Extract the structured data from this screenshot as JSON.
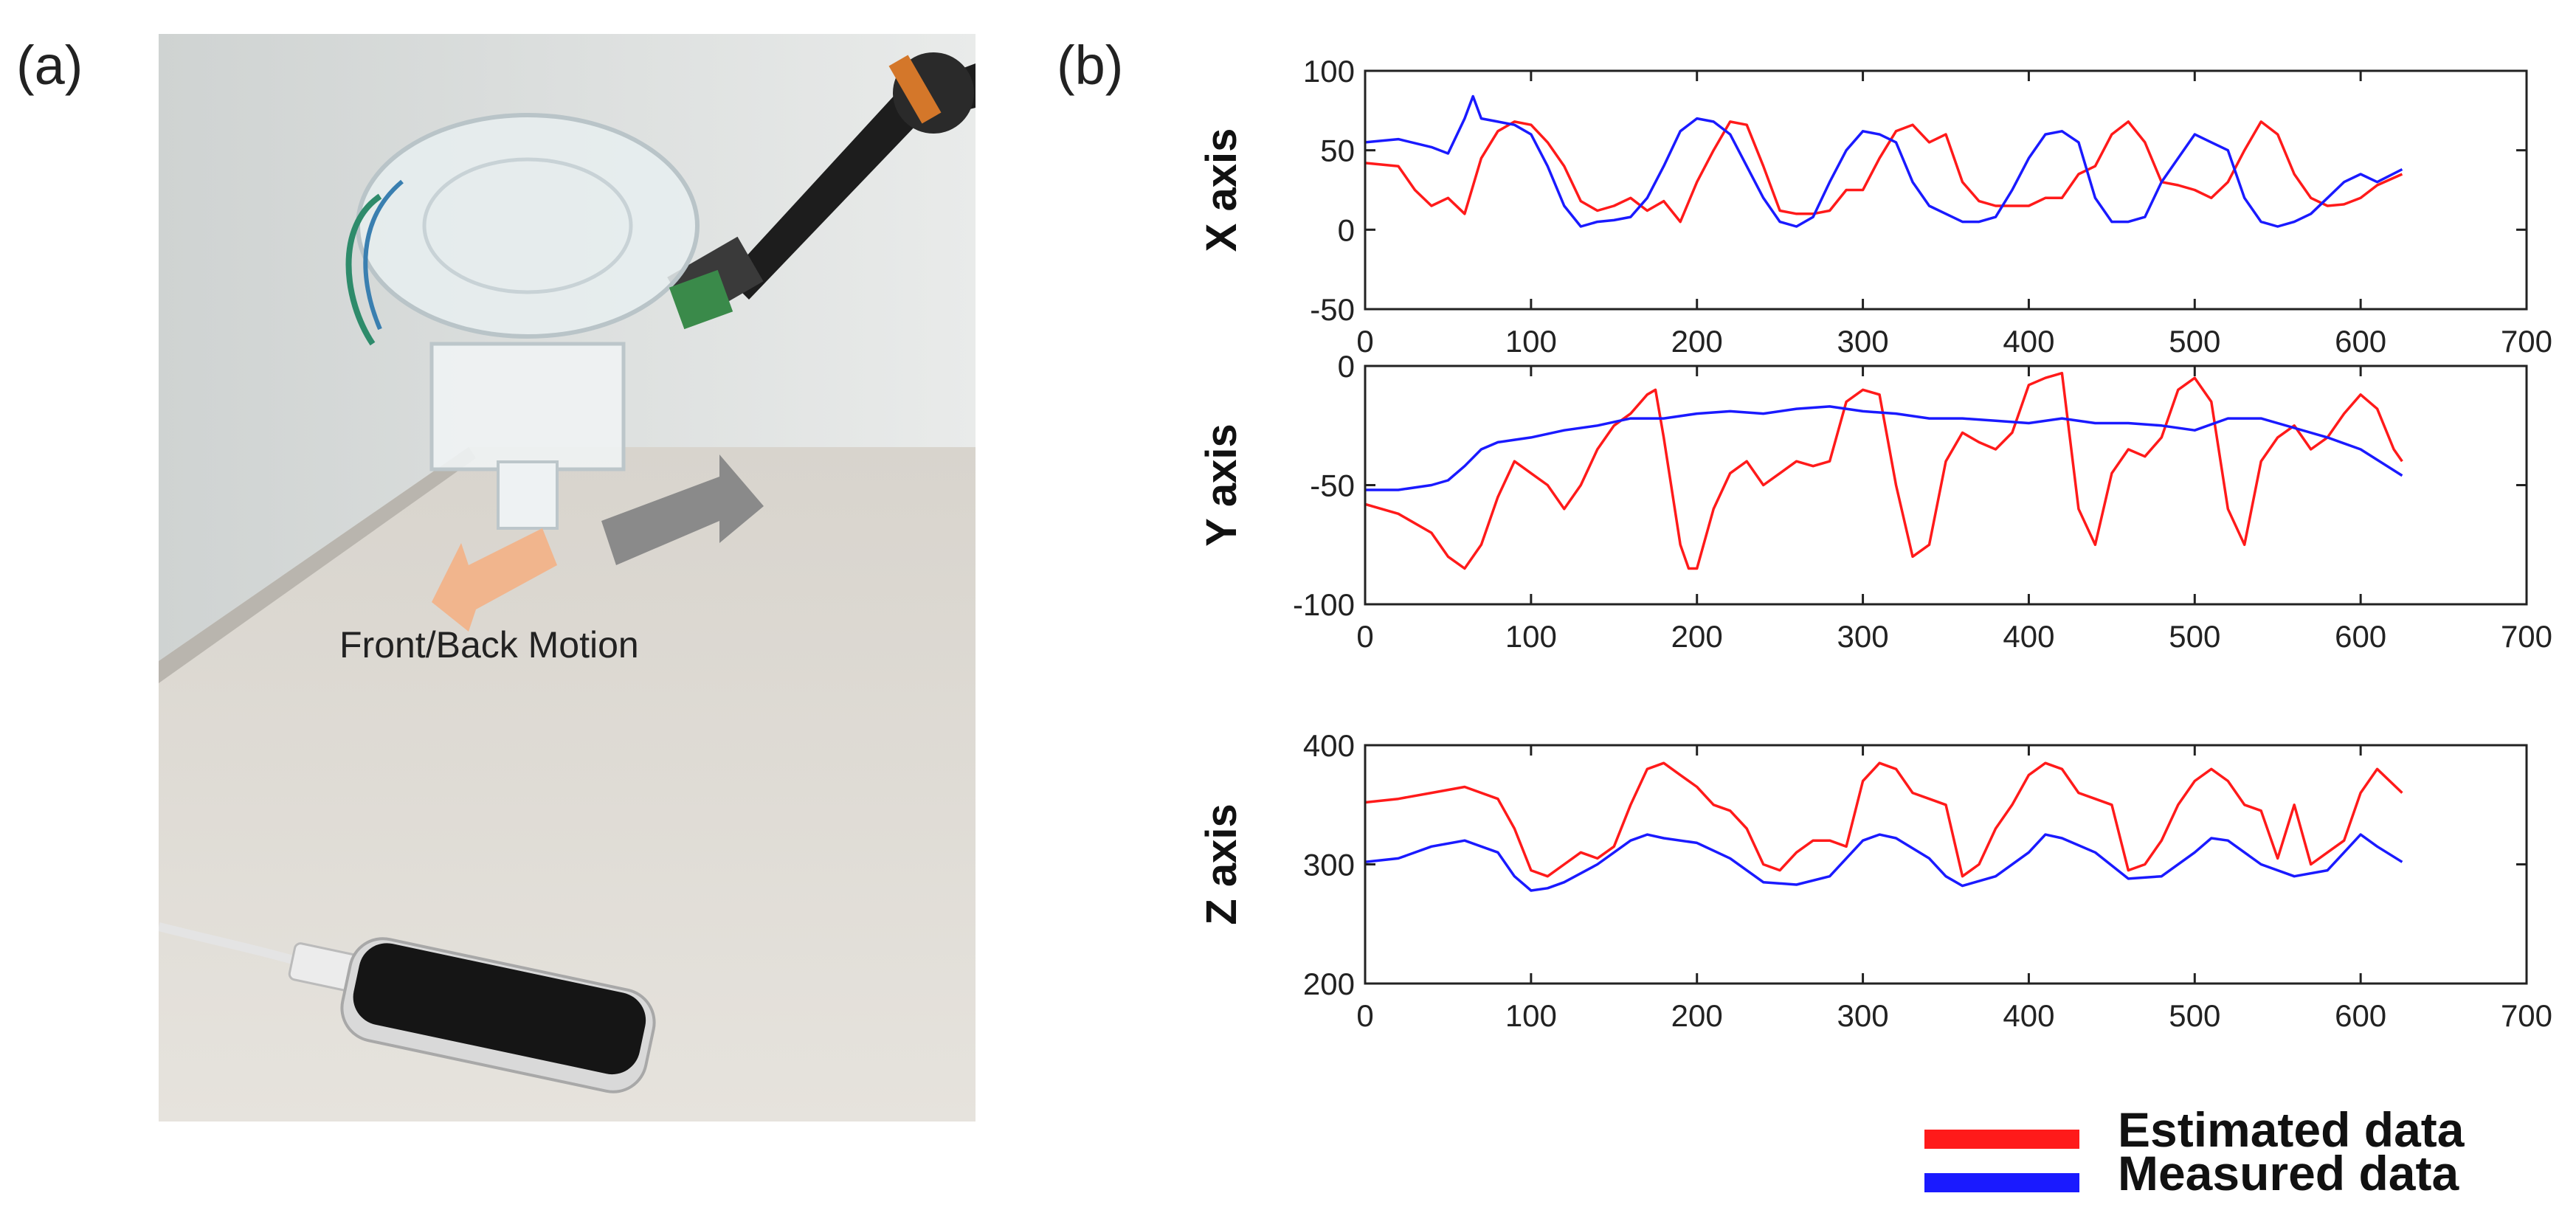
{
  "panels": {
    "a": "(a)",
    "b": "(b)"
  },
  "photo": {
    "annotation": "Front/Back Motion"
  },
  "legend": {
    "estimated": {
      "label": "Estimated data",
      "color": "#ff1a1a"
    },
    "measured": {
      "label": "Measured data",
      "color": "#1a1aff"
    }
  },
  "chart_data": [
    {
      "type": "line",
      "ylabel": "X axis",
      "xlim": [
        0,
        700
      ],
      "ylim": [
        -50,
        100
      ],
      "xticks": [
        0,
        100,
        200,
        300,
        400,
        500,
        600,
        700
      ],
      "yticks": [
        -50,
        0,
        50,
        100
      ],
      "series": [
        {
          "name": "Estimated data",
          "color": "#ff1a1a",
          "x": [
            0,
            20,
            30,
            40,
            50,
            60,
            70,
            80,
            90,
            100,
            110,
            120,
            130,
            140,
            150,
            160,
            170,
            180,
            190,
            200,
            210,
            220,
            230,
            240,
            250,
            260,
            270,
            280,
            290,
            300,
            310,
            320,
            330,
            340,
            350,
            360,
            370,
            380,
            390,
            400,
            410,
            420,
            430,
            440,
            450,
            460,
            470,
            480,
            490,
            500,
            510,
            520,
            530,
            540,
            550,
            560,
            570,
            580,
            590,
            600,
            610,
            625
          ],
          "y": [
            42,
            40,
            25,
            15,
            20,
            10,
            45,
            62,
            68,
            66,
            55,
            40,
            18,
            12,
            15,
            20,
            12,
            18,
            5,
            30,
            50,
            68,
            66,
            40,
            12,
            10,
            10,
            12,
            25,
            25,
            45,
            62,
            66,
            55,
            60,
            30,
            18,
            15,
            15,
            15,
            20,
            20,
            35,
            40,
            60,
            68,
            55,
            30,
            28,
            25,
            20,
            30,
            50,
            68,
            60,
            35,
            20,
            15,
            16,
            20,
            28,
            35
          ]
        },
        {
          "name": "Measured data",
          "color": "#1a1aff",
          "x": [
            0,
            20,
            40,
            50,
            60,
            65,
            70,
            80,
            90,
            100,
            110,
            120,
            130,
            140,
            150,
            160,
            170,
            180,
            190,
            200,
            210,
            220,
            230,
            240,
            250,
            260,
            270,
            280,
            290,
            300,
            310,
            320,
            330,
            340,
            350,
            360,
            370,
            380,
            390,
            400,
            410,
            420,
            430,
            440,
            450,
            460,
            470,
            480,
            490,
            500,
            510,
            520,
            530,
            540,
            550,
            560,
            570,
            580,
            590,
            600,
            610,
            625
          ],
          "y": [
            55,
            57,
            52,
            48,
            70,
            84,
            70,
            68,
            66,
            60,
            40,
            15,
            2,
            5,
            6,
            8,
            20,
            40,
            62,
            70,
            68,
            60,
            40,
            20,
            5,
            2,
            8,
            30,
            50,
            62,
            60,
            55,
            30,
            15,
            10,
            5,
            5,
            8,
            25,
            45,
            60,
            62,
            55,
            20,
            5,
            5,
            8,
            30,
            45,
            60,
            55,
            50,
            20,
            5,
            2,
            5,
            10,
            20,
            30,
            35,
            30,
            38
          ]
        }
      ]
    },
    {
      "type": "line",
      "ylabel": "Y axis",
      "xlim": [
        0,
        700
      ],
      "ylim": [
        -100,
        0
      ],
      "xticks": [
        0,
        100,
        200,
        300,
        400,
        500,
        600,
        700
      ],
      "yticks": [
        -100,
        -50,
        0
      ],
      "series": [
        {
          "name": "Estimated data",
          "color": "#ff1a1a",
          "x": [
            0,
            20,
            40,
            50,
            60,
            70,
            80,
            90,
            100,
            110,
            120,
            130,
            140,
            150,
            160,
            170,
            175,
            180,
            190,
            195,
            200,
            210,
            220,
            230,
            240,
            250,
            260,
            270,
            280,
            290,
            300,
            310,
            320,
            330,
            340,
            350,
            360,
            370,
            380,
            390,
            400,
            410,
            420,
            430,
            440,
            450,
            460,
            470,
            480,
            490,
            500,
            510,
            520,
            530,
            540,
            550,
            560,
            570,
            580,
            590,
            600,
            610,
            620,
            625
          ],
          "y": [
            -58,
            -62,
            -70,
            -80,
            -85,
            -75,
            -55,
            -40,
            -45,
            -50,
            -60,
            -50,
            -35,
            -25,
            -20,
            -12,
            -10,
            -30,
            -75,
            -85,
            -85,
            -60,
            -45,
            -40,
            -50,
            -45,
            -40,
            -42,
            -40,
            -15,
            -10,
            -12,
            -50,
            -80,
            -75,
            -40,
            -28,
            -32,
            -35,
            -28,
            -8,
            -5,
            -3,
            -60,
            -75,
            -45,
            -35,
            -38,
            -30,
            -10,
            -5,
            -15,
            -60,
            -75,
            -40,
            -30,
            -25,
            -35,
            -30,
            -20,
            -12,
            -18,
            -35,
            -40
          ]
        },
        {
          "name": "Measured data",
          "color": "#1a1aff",
          "x": [
            0,
            20,
            40,
            50,
            60,
            70,
            80,
            90,
            100,
            120,
            140,
            160,
            180,
            200,
            220,
            240,
            260,
            280,
            300,
            320,
            340,
            360,
            380,
            400,
            420,
            440,
            460,
            480,
            500,
            520,
            540,
            560,
            580,
            600,
            625
          ],
          "y": [
            -52,
            -52,
            -50,
            -48,
            -42,
            -35,
            -32,
            -31,
            -30,
            -27,
            -25,
            -22,
            -22,
            -20,
            -19,
            -20,
            -18,
            -17,
            -19,
            -20,
            -22,
            -22,
            -23,
            -24,
            -22,
            -24,
            -24,
            -25,
            -27,
            -22,
            -22,
            -26,
            -30,
            -35,
            -46
          ]
        }
      ]
    },
    {
      "type": "line",
      "ylabel": "Z axis",
      "xlim": [
        0,
        700
      ],
      "ylim": [
        200,
        400
      ],
      "xticks": [
        0,
        100,
        200,
        300,
        400,
        500,
        600,
        700
      ],
      "yticks": [
        200,
        300,
        400
      ],
      "series": [
        {
          "name": "Estimated data",
          "color": "#ff1a1a",
          "x": [
            0,
            20,
            40,
            60,
            80,
            90,
            100,
            110,
            120,
            130,
            140,
            150,
            160,
            170,
            180,
            190,
            200,
            210,
            220,
            230,
            240,
            250,
            260,
            270,
            280,
            290,
            300,
            310,
            320,
            330,
            340,
            350,
            360,
            370,
            380,
            390,
            400,
            410,
            420,
            430,
            440,
            450,
            460,
            470,
            480,
            490,
            500,
            510,
            520,
            530,
            540,
            550,
            560,
            570,
            580,
            590,
            600,
            610,
            625
          ],
          "y": [
            352,
            355,
            360,
            365,
            355,
            330,
            295,
            290,
            300,
            310,
            305,
            315,
            350,
            380,
            385,
            375,
            365,
            350,
            345,
            330,
            300,
            295,
            310,
            320,
            320,
            315,
            370,
            385,
            380,
            360,
            355,
            350,
            290,
            300,
            330,
            350,
            375,
            385,
            380,
            360,
            355,
            350,
            295,
            300,
            320,
            350,
            370,
            380,
            370,
            350,
            345,
            305,
            350,
            300,
            310,
            320,
            360,
            380,
            360
          ]
        },
        {
          "name": "Measured data",
          "color": "#1a1aff",
          "x": [
            0,
            20,
            40,
            60,
            80,
            90,
            100,
            110,
            120,
            140,
            160,
            170,
            180,
            200,
            220,
            240,
            260,
            280,
            300,
            310,
            320,
            340,
            350,
            360,
            380,
            400,
            410,
            420,
            440,
            460,
            480,
            500,
            510,
            520,
            540,
            560,
            580,
            590,
            600,
            610,
            625
          ],
          "y": [
            302,
            305,
            315,
            320,
            310,
            290,
            278,
            280,
            285,
            300,
            320,
            325,
            322,
            318,
            305,
            285,
            283,
            290,
            320,
            325,
            322,
            305,
            290,
            282,
            290,
            310,
            325,
            322,
            310,
            288,
            290,
            310,
            322,
            320,
            300,
            290,
            295,
            310,
            325,
            315,
            302
          ]
        }
      ]
    }
  ]
}
